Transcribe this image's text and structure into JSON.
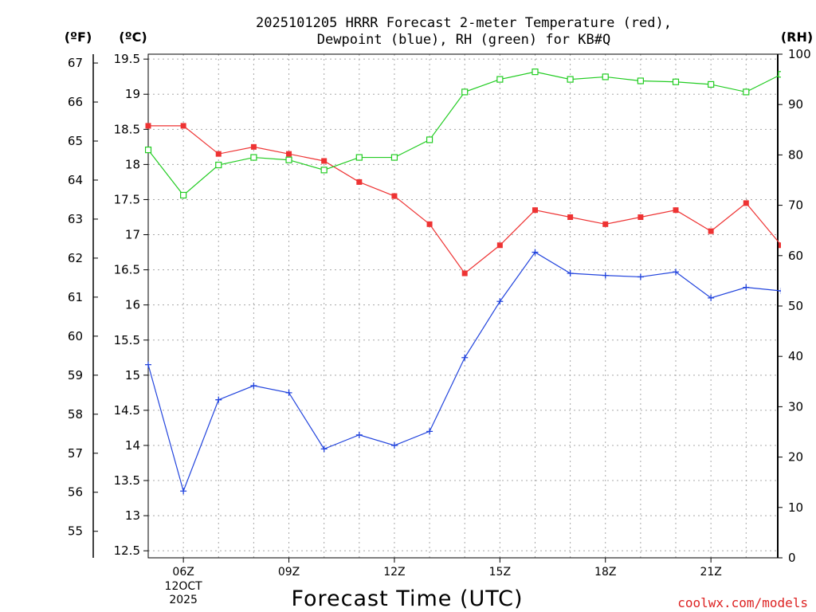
{
  "title_line1": "2025101205 HRRR Forecast 2-meter Temperature (red),",
  "title_line2": "Dewpoint (blue), RH (green) for KB#Q",
  "unit_f": "(ºF)",
  "unit_c": "(ºC)",
  "unit_rh": "(RH)",
  "credit": "coolwx.com/models",
  "colors": {
    "temp": "#ee3333",
    "dewpoint": "#2244dd",
    "rh": "#22cc22",
    "credit": "#dd2222"
  },
  "chart_data": {
    "type": "line",
    "title": "2025101205 HRRR Forecast 2-meter Temperature (red), Dewpoint (blue), RH (green) for KB#Q",
    "xlabel": "Forecast Time (UTC)",
    "x_hours": [
      5,
      6,
      7,
      8,
      9,
      10,
      11,
      12,
      13,
      14,
      15,
      16,
      17,
      18,
      19,
      20,
      21,
      22,
      23
    ],
    "x_range": [
      5,
      22.9
    ],
    "x_ticks": [
      {
        "hour": 6,
        "label": "06Z",
        "date1": "12OCT",
        "date2": "2025"
      },
      {
        "hour": 9,
        "label": "09Z"
      },
      {
        "hour": 12,
        "label": "12Z"
      },
      {
        "hour": 15,
        "label": "15Z"
      },
      {
        "hour": 18,
        "label": "18Z"
      },
      {
        "hour": 21,
        "label": "21Z"
      }
    ],
    "y_celsius": {
      "range": [
        12.4,
        19.57
      ],
      "ticks": [
        "12.5",
        "13",
        "13.5",
        "14",
        "14.5",
        "15",
        "15.5",
        "16",
        "16.5",
        "17",
        "17.5",
        "18",
        "18.5",
        "19",
        "19.5"
      ]
    },
    "y_fahrenheit": {
      "ticks": [
        "55",
        "56",
        "57",
        "58",
        "59",
        "60",
        "61",
        "62",
        "63",
        "64",
        "65",
        "66",
        "67"
      ]
    },
    "y_rh": {
      "range": [
        0,
        100
      ],
      "ticks": [
        "0",
        "10",
        "20",
        "30",
        "40",
        "50",
        "60",
        "70",
        "80",
        "90",
        "100"
      ]
    },
    "series": [
      {
        "name": "Temperature",
        "units": "°C",
        "color": "#ee3333",
        "values": [
          18.55,
          18.55,
          18.15,
          18.25,
          18.15,
          18.05,
          17.75,
          17.55,
          17.15,
          16.45,
          16.85,
          17.35,
          17.25,
          17.15,
          17.25,
          17.35,
          17.05,
          17.45,
          16.85
        ]
      },
      {
        "name": "Dewpoint",
        "units": "°C",
        "color": "#2244dd",
        "values": [
          15.15,
          13.35,
          14.65,
          14.85,
          14.75,
          13.95,
          14.15,
          14.0,
          14.2,
          15.25,
          16.05,
          16.75,
          16.45,
          16.42,
          16.4,
          16.47,
          16.1,
          16.25,
          16.2
        ]
      },
      {
        "name": "Relative Humidity",
        "units": "%",
        "color": "#22cc22",
        "values": [
          81,
          72,
          78,
          79.5,
          79,
          77,
          79.5,
          79.5,
          83,
          92.5,
          95,
          96.5,
          95,
          95.5,
          94.7,
          94.5,
          94,
          92.5,
          96
        ]
      }
    ]
  }
}
